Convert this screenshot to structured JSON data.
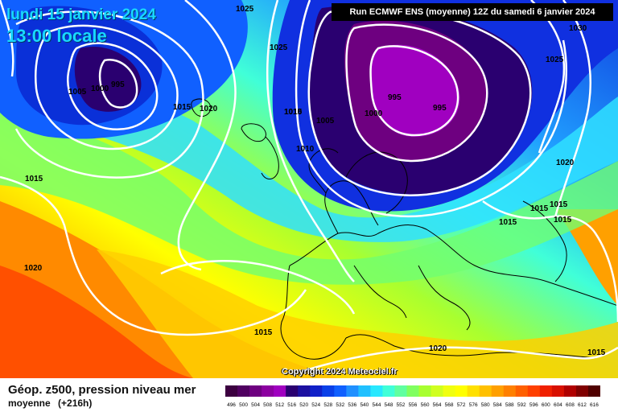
{
  "header": {
    "date": "lundi 15 janvier 2024",
    "time": "13:00 locale",
    "run": "Run ECMWF ENS (moyenne) 12Z du samedi 6 janvier 2024"
  },
  "footer": {
    "parameter": "Géop. z500, pression niveau mer",
    "type": "moyenne",
    "lead": "(+216h)",
    "copyright": "Copyright 2024 Meteociel.fr"
  },
  "scale_labels": [
    "496",
    "500",
    "504",
    "508",
    "512",
    "516",
    "520",
    "524",
    "528",
    "532",
    "536",
    "540",
    "544",
    "548",
    "552",
    "556",
    "560",
    "564",
    "568",
    "572",
    "576",
    "580",
    "584",
    "588",
    "592",
    "596",
    "600",
    "604",
    "608",
    "612",
    "616"
  ],
  "scale_colors": [
    "#3c0040",
    "#500060",
    "#6e0080",
    "#8c00a0",
    "#a000c0",
    "#2a0070",
    "#1c10a0",
    "#1020c8",
    "#0a40e8",
    "#1060ff",
    "#2090ff",
    "#20c0ff",
    "#28e8ff",
    "#40ffd8",
    "#60ffa0",
    "#80ff60",
    "#a8ff30",
    "#d0ff20",
    "#f0ff10",
    "#ffff00",
    "#ffe000",
    "#ffc000",
    "#ffa000",
    "#ff8000",
    "#ff6000",
    "#ff4000",
    "#f02000",
    "#d81000",
    "#b00000",
    "#800000",
    "#500000"
  ],
  "isobar_labels": [
    {
      "text": "1025"
    },
    {
      "text": "1030"
    },
    {
      "text": "1025"
    },
    {
      "text": "1025"
    },
    {
      "text": "1005"
    },
    {
      "text": "1000"
    },
    {
      "text": "995"
    },
    {
      "text": "1015"
    },
    {
      "text": "1010"
    },
    {
      "text": "1020"
    },
    {
      "text": "1015"
    },
    {
      "text": "1005"
    },
    {
      "text": "1010"
    },
    {
      "text": "1000"
    },
    {
      "text": "995"
    },
    {
      "text": "995"
    },
    {
      "text": "1020"
    },
    {
      "text": "1015"
    },
    {
      "text": "1015"
    },
    {
      "text": "1015"
    },
    {
      "text": "1015"
    },
    {
      "text": "1015"
    },
    {
      "text": "1020"
    },
    {
      "text": "1015"
    },
    {
      "text": "1020"
    },
    {
      "text": "1015"
    }
  ],
  "colors": {
    "title": "#19d8ff",
    "isobar": "#ffffff",
    "coast": "#000000"
  }
}
